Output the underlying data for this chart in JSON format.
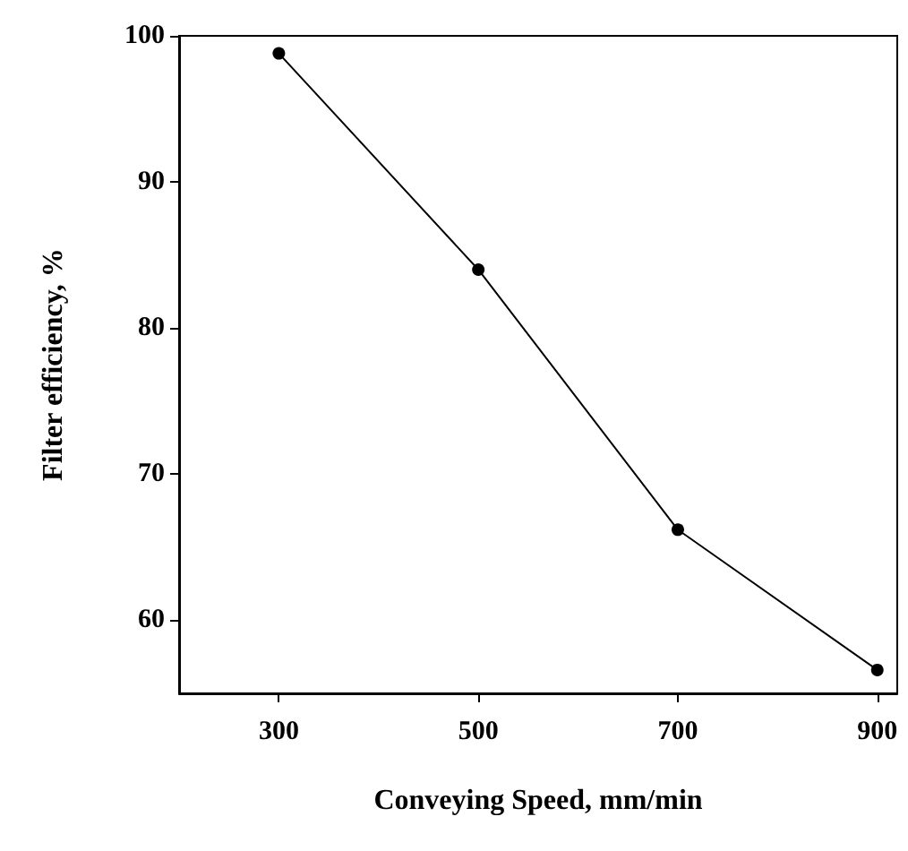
{
  "chart_data": {
    "type": "line",
    "xlabel": "Conveying Speed, mm/min",
    "ylabel": "Filter efficiency, %",
    "x": [
      300,
      500,
      700,
      900
    ],
    "series": [
      {
        "color": "#000000",
        "values": [
          98.8,
          84,
          66.2,
          56.6
        ]
      }
    ],
    "xlim": [
      200,
      920
    ],
    "xticks": [
      300,
      500,
      700,
      900
    ],
    "ylim": [
      55,
      100
    ],
    "yticks": [
      60,
      70,
      80,
      90,
      100
    ],
    "grid": false,
    "marker": "circle",
    "line_style": "solid"
  }
}
